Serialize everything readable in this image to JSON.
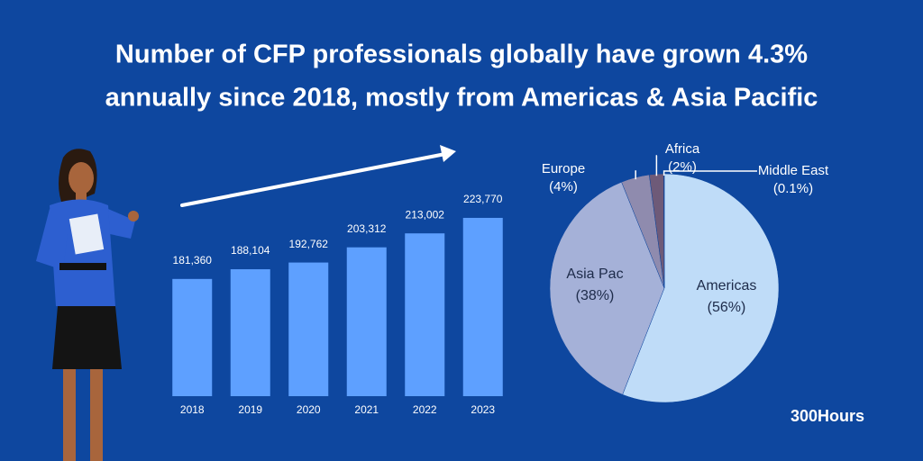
{
  "title": [
    "Number of CFP professionals globally have grown 4.3%",
    "annually since 2018, mostly from Americas & Asia Pacific"
  ],
  "brand": "300Hours",
  "chart_data": [
    {
      "type": "bar",
      "categories": [
        "2018",
        "2019",
        "2020",
        "2021",
        "2022",
        "2023"
      ],
      "values": [
        181360,
        188104,
        192762,
        203312,
        213002,
        223770
      ],
      "value_labels": [
        "181,360",
        "188,104",
        "192,762",
        "203,312",
        "213,002",
        "223,770"
      ],
      "color": "#5ea0ff",
      "ylim": [
        100000,
        230000
      ]
    },
    {
      "type": "pie",
      "categories": [
        "Americas",
        "Asia Pac",
        "Europe",
        "Africa",
        "Middle East"
      ],
      "values": [
        56,
        38,
        4,
        2,
        0.1
      ],
      "value_labels": [
        "(56%)",
        "(38%)",
        "(4%)",
        "(2%)",
        "(0.1%)"
      ],
      "colors": [
        "#bfdcf8",
        "#a5b1d8",
        "#8f8bae",
        "#6e5a78",
        "#4a3a5c"
      ]
    }
  ]
}
